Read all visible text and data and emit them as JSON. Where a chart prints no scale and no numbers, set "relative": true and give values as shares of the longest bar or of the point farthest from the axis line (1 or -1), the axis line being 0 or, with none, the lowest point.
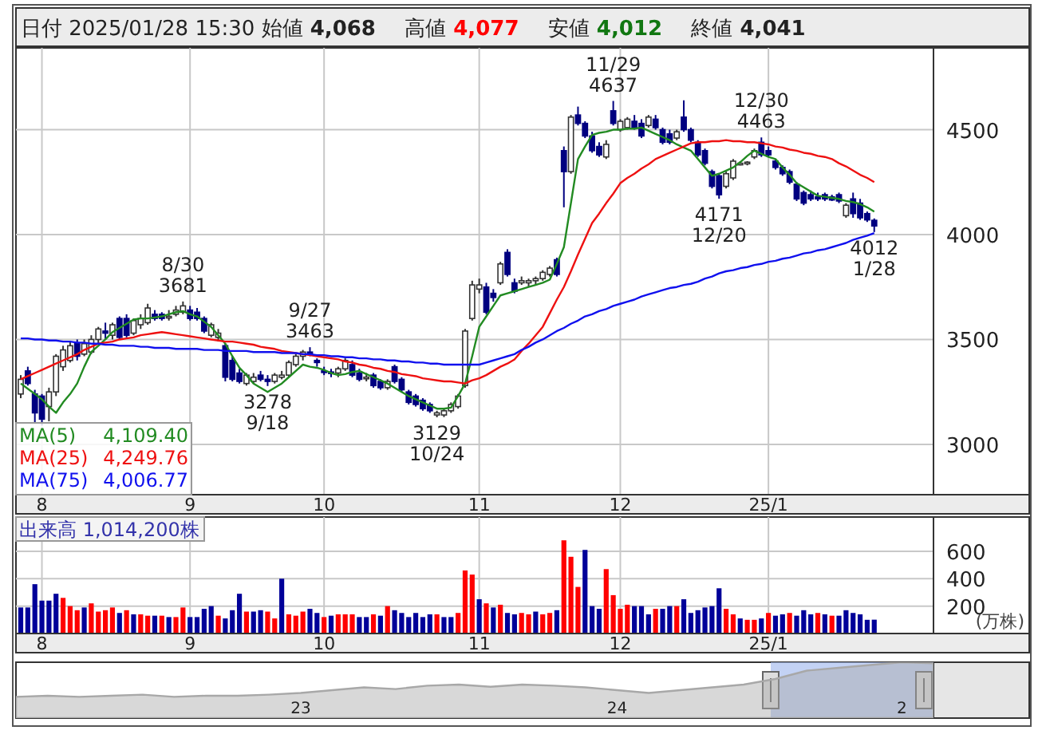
{
  "chart_data": [
    {
      "type": "candlestick",
      "title": "日付 2025/01/28 15:30 始値 4,068 高値 4,077 安値 4,012 終値 4,041",
      "colors": [
        "#ffffff",
        "#000080",
        "#000080",
        "#000080",
        "#ffffff",
        "#ffffff",
        "#ffffff",
        "#ffffff",
        "#000080",
        "#ffffff",
        "#ffffff",
        "#ffffff",
        "#000080",
        "#ffffff",
        "#000080",
        "#000080",
        "#ffffff",
        "#ffffff",
        "#ffffff",
        "#000080",
        "#000080",
        "#ffffff",
        "#ffffff",
        "#ffffff",
        "#000080",
        "#000080",
        "#000080",
        "#ffffff",
        "#ffffff",
        "#000080",
        "#000080",
        "#000080",
        "#ffffff",
        "#ffffff",
        "#000080",
        "#000080",
        "#ffffff",
        "#ffffff",
        "#ffffff",
        "#ffffff",
        "#ffffff",
        "#000080",
        "#000080",
        "#000080",
        "#000080",
        "#ffffff",
        "#ffffff",
        "#000080",
        "#000080",
        "#ffffff",
        "#000080",
        "#000080",
        "#ffffff",
        "#000080",
        "#000080",
        "#000080",
        "#000080",
        "#000080",
        "#000080",
        "#ffffff",
        "#ffffff",
        "#ffffff",
        "#ffffff",
        "#ffffff",
        "#ffffff",
        "#ffffff",
        "#000080",
        "#000080",
        "#ffffff",
        "#000080",
        "#000080",
        "#ffffff",
        "#ffffff",
        "#ffffff",
        "#ffffff",
        "#ffffff",
        "#000080",
        "#000080",
        "#ffffff",
        "#000080",
        "#000080",
        "#000080",
        "#000080",
        "#ffffff",
        "#000080",
        "#ffffff",
        "#ffffff",
        "#000080",
        "#000080",
        "#ffffff",
        "#000080",
        "#000080",
        "#000080",
        "#ffffff",
        "#000080",
        "#000080",
        "#000080",
        "#000080",
        "#000080",
        "#000080",
        "#ffffff",
        "#ffffff",
        "#ffffff",
        "#ffffff",
        "#ffffff",
        "#000080",
        "#000080",
        "#000080",
        "#000080",
        "#000080",
        "#000080",
        "#000080",
        "#000080",
        "#000080",
        "#000080",
        "#000080",
        "#000080",
        "#ffffff",
        "#000080",
        "#000080",
        "#000080",
        "#000080"
      ],
      "categories": [
        null,
        null,
        null,
        "8",
        null,
        null,
        null,
        null,
        null,
        null,
        null,
        null,
        null,
        null,
        null,
        null,
        null,
        null,
        null,
        null,
        null,
        null,
        null,
        null,
        "9",
        null,
        null,
        null,
        null,
        null,
        null,
        null,
        null,
        null,
        null,
        null,
        null,
        null,
        null,
        null,
        null,
        null,
        null,
        "10",
        null,
        null,
        null,
        null,
        null,
        null,
        null,
        null,
        null,
        null,
        null,
        null,
        null,
        null,
        null,
        null,
        null,
        null,
        null,
        null,
        null,
        "11",
        null,
        null,
        null,
        null,
        null,
        null,
        null,
        null,
        null,
        null,
        null,
        null,
        null,
        null,
        null,
        null,
        null,
        null,
        null,
        "12",
        null,
        null,
        null,
        null,
        null,
        null,
        null,
        null,
        null,
        null,
        null,
        null,
        null,
        null,
        null,
        null,
        null,
        null,
        null,
        null,
        "25/1",
        null,
        null,
        null,
        null,
        null,
        null,
        null,
        null,
        null,
        null,
        null,
        null,
        null,
        null,
        null
      ],
      "ohlc": [
        [
          3240,
          3330,
          3220,
          3310
        ],
        [
          3350,
          3370,
          3280,
          3290
        ],
        [
          3240,
          3260,
          3100,
          3150
        ],
        [
          3230,
          3240,
          3090,
          3120
        ],
        [
          3180,
          3270,
          3110,
          3250
        ],
        [
          3250,
          3430,
          3230,
          3420
        ],
        [
          3370,
          3470,
          3350,
          3450
        ],
        [
          3400,
          3490,
          3390,
          3470
        ],
        [
          3480,
          3500,
          3400,
          3420
        ],
        [
          3430,
          3500,
          3420,
          3480
        ],
        [
          3440,
          3520,
          3430,
          3500
        ],
        [
          3500,
          3560,
          3480,
          3550
        ],
        [
          3540,
          3580,
          3500,
          3530
        ],
        [
          3520,
          3580,
          3500,
          3570
        ],
        [
          3600,
          3610,
          3500,
          3510
        ],
        [
          3600,
          3620,
          3510,
          3520
        ],
        [
          3530,
          3600,
          3520,
          3590
        ],
        [
          3570,
          3620,
          3550,
          3600
        ],
        [
          3580,
          3670,
          3570,
          3650
        ],
        [
          3620,
          3640,
          3590,
          3600
        ],
        [
          3620,
          3630,
          3590,
          3600
        ],
        [
          3610,
          3640,
          3590,
          3610
        ],
        [
          3620,
          3660,
          3610,
          3640
        ],
        [
          3630,
          3681,
          3620,
          3660
        ],
        [
          3640,
          3660,
          3590,
          3600
        ],
        [
          3630,
          3650,
          3590,
          3600
        ],
        [
          3600,
          3610,
          3530,
          3540
        ],
        [
          3520,
          3580,
          3510,
          3570
        ],
        [
          3510,
          3550,
          3490,
          3530
        ],
        [
          3470,
          3480,
          3300,
          3320
        ],
        [
          3400,
          3420,
          3300,
          3310
        ],
        [
          3340,
          3360,
          3290,
          3300
        ],
        [
          3290,
          3340,
          3280,
          3330
        ],
        [
          3300,
          3340,
          3290,
          3320
        ],
        [
          3330,
          3350,
          3300,
          3310
        ],
        [
          3310,
          3330,
          3278,
          3300
        ],
        [
          3300,
          3340,
          3290,
          3330
        ],
        [
          3320,
          3350,
          3310,
          3330
        ],
        [
          3330,
          3400,
          3320,
          3390
        ],
        [
          3380,
          3430,
          3370,
          3420
        ],
        [
          3420,
          3450,
          3400,
          3440
        ],
        [
          3440,
          3463,
          3420,
          3430
        ],
        [
          3400,
          3410,
          3370,
          3390
        ],
        [
          3350,
          3370,
          3330,
          3345
        ],
        [
          3345,
          3360,
          3320,
          3340
        ],
        [
          3340,
          3370,
          3320,
          3360
        ],
        [
          3360,
          3410,
          3350,
          3400
        ],
        [
          3380,
          3400,
          3320,
          3330
        ],
        [
          3340,
          3360,
          3300,
          3310
        ],
        [
          3320,
          3340,
          3300,
          3320
        ],
        [
          3330,
          3340,
          3270,
          3280
        ],
        [
          3300,
          3310,
          3260,
          3270
        ],
        [
          3270,
          3310,
          3260,
          3300
        ],
        [
          3370,
          3380,
          3290,
          3300
        ],
        [
          3310,
          3320,
          3250,
          3260
        ],
        [
          3250,
          3260,
          3190,
          3200
        ],
        [
          3230,
          3240,
          3180,
          3190
        ],
        [
          3210,
          3220,
          3160,
          3170
        ],
        [
          3190,
          3200,
          3150,
          3160
        ],
        [
          3140,
          3160,
          3129,
          3150
        ],
        [
          3140,
          3170,
          3130,
          3160
        ],
        [
          3160,
          3200,
          3150,
          3190
        ],
        [
          3180,
          3240,
          3170,
          3230
        ],
        [
          3280,
          3550,
          3270,
          3540
        ],
        [
          3600,
          3780,
          3590,
          3760
        ],
        [
          3740,
          3790,
          3720,
          3760
        ],
        [
          3750,
          3770,
          3620,
          3630
        ],
        [
          3720,
          3740,
          3680,
          3700
        ],
        [
          3770,
          3870,
          3760,
          3860
        ],
        [
          3915,
          3930,
          3800,
          3810
        ],
        [
          3770,
          3790,
          3720,
          3730
        ],
        [
          3770,
          3800,
          3760,
          3780
        ],
        [
          3770,
          3790,
          3750,
          3780
        ],
        [
          3780,
          3800,
          3760,
          3790
        ],
        [
          3790,
          3830,
          3780,
          3820
        ],
        [
          3810,
          3850,
          3800,
          3840
        ],
        [
          3880,
          3890,
          3800,
          3810
        ],
        [
          4400,
          4420,
          4130,
          4300
        ],
        [
          4300,
          4570,
          4290,
          4560
        ],
        [
          4570,
          4610,
          4520,
          4530
        ],
        [
          4530,
          4540,
          4460,
          4470
        ],
        [
          4470,
          4490,
          4390,
          4400
        ],
        [
          4420,
          4440,
          4370,
          4380
        ],
        [
          4370,
          4450,
          4360,
          4430
        ],
        [
          4590,
          4637,
          4520,
          4530
        ],
        [
          4500,
          4550,
          4490,
          4540
        ],
        [
          4510,
          4560,
          4500,
          4550
        ],
        [
          4540,
          4570,
          4500,
          4510
        ],
        [
          4530,
          4550,
          4460,
          4470
        ],
        [
          4520,
          4570,
          4510,
          4560
        ],
        [
          4550,
          4570,
          4500,
          4510
        ],
        [
          4500,
          4510,
          4430,
          4440
        ],
        [
          4480,
          4500,
          4430,
          4440
        ],
        [
          4460,
          4500,
          4450,
          4490
        ],
        [
          4560,
          4640,
          4490,
          4500
        ],
        [
          4500,
          4510,
          4440,
          4450
        ],
        [
          4440,
          4450,
          4370,
          4380
        ],
        [
          4400,
          4410,
          4330,
          4340
        ],
        [
          4300,
          4310,
          4220,
          4230
        ],
        [
          4280,
          4290,
          4171,
          4190
        ],
        [
          4230,
          4300,
          4220,
          4290
        ],
        [
          4270,
          4360,
          4260,
          4350
        ],
        [
          4340,
          4350,
          4330,
          4340
        ],
        [
          4340,
          4350,
          4330,
          4345
        ],
        [
          4370,
          4410,
          4360,
          4400
        ],
        [
          4440,
          4463,
          4370,
          4380
        ],
        [
          4400,
          4420,
          4370,
          4380
        ],
        [
          4350,
          4360,
          4310,
          4320
        ],
        [
          4320,
          4330,
          4280,
          4290
        ],
        [
          4300,
          4310,
          4240,
          4250
        ],
        [
          4240,
          4250,
          4160,
          4170
        ],
        [
          4200,
          4210,
          4140,
          4150
        ],
        [
          4190,
          4210,
          4160,
          4170
        ],
        [
          4180,
          4200,
          4160,
          4170
        ],
        [
          4190,
          4200,
          4160,
          4170
        ],
        [
          4180,
          4190,
          4160,
          4165
        ],
        [
          4190,
          4200,
          4150,
          4160
        ],
        [
          4090,
          4150,
          4080,
          4140
        ],
        [
          4170,
          4200,
          4080,
          4100
        ],
        [
          4150,
          4170,
          4070,
          4080
        ],
        [
          4100,
          4110,
          4060,
          4070
        ],
        [
          4068,
          4077,
          4012,
          4041
        ]
      ],
      "series": [
        {
          "type": "line",
          "name": "MA(5)",
          "color": "#228b22",
          "values": [
            3290,
            3265,
            3240,
            3215,
            3180,
            3150,
            3200,
            3240,
            3290,
            3370,
            3440,
            3470,
            3500,
            3535,
            3555,
            3575,
            3595,
            3600,
            3600,
            3605,
            3610,
            3620,
            3630,
            3635,
            3620,
            3610,
            3585,
            3560,
            3520,
            3480,
            3420,
            3365,
            3330,
            3290,
            3270,
            3250,
            3270,
            3290,
            3320,
            3350,
            3380,
            3370,
            3365,
            3355,
            3340,
            3330,
            3335,
            3345,
            3350,
            3335,
            3320,
            3305,
            3290,
            3270,
            3250,
            3230,
            3215,
            3200,
            3185,
            3170,
            3170,
            3175,
            3230,
            3290,
            3420,
            3560,
            3610,
            3660,
            3710,
            3720,
            3730,
            3740,
            3750,
            3760,
            3770,
            3785,
            3860,
            3940,
            4150,
            4360,
            4420,
            4475,
            4485,
            4490,
            4500,
            4500,
            4505,
            4505,
            4510,
            4495,
            4480,
            4465,
            4450,
            4430,
            4415,
            4400,
            4360,
            4320,
            4280,
            4290,
            4305,
            4320,
            4345,
            4375,
            4400,
            4385,
            4370,
            4360,
            4320,
            4285,
            4245,
            4225,
            4205,
            4185,
            4180,
            4175,
            4170,
            4160,
            4155,
            4145,
            4130,
            4109.4
          ]
        },
        {
          "type": "line",
          "name": "MA(25)",
          "color": "#ee1111",
          "values": [
            3310,
            3325,
            3340,
            3355,
            3370,
            3385,
            3400,
            3415,
            3430,
            3450,
            3465,
            3480,
            3485,
            3490,
            3500,
            3505,
            3510,
            3520,
            3525,
            3530,
            3535,
            3530,
            3525,
            3520,
            3515,
            3510,
            3505,
            3500,
            3495,
            3490,
            3490,
            3485,
            3480,
            3475,
            3465,
            3460,
            3455,
            3445,
            3440,
            3435,
            3430,
            3425,
            3420,
            3415,
            3410,
            3405,
            3395,
            3390,
            3380,
            3375,
            3365,
            3360,
            3350,
            3345,
            3335,
            3330,
            3325,
            3315,
            3310,
            3305,
            3300,
            3300,
            3295,
            3290,
            3305,
            3315,
            3330,
            3350,
            3370,
            3385,
            3405,
            3445,
            3480,
            3520,
            3560,
            3625,
            3690,
            3750,
            3825,
            3905,
            3980,
            4055,
            4100,
            4150,
            4195,
            4245,
            4270,
            4290,
            4315,
            4335,
            4360,
            4375,
            4390,
            4405,
            4420,
            4435,
            4440,
            4440,
            4445,
            4445,
            4450,
            4445,
            4445,
            4440,
            4440,
            4435,
            4430,
            4420,
            4415,
            4405,
            4400,
            4390,
            4385,
            4375,
            4370,
            4360,
            4340,
            4325,
            4305,
            4285,
            4270,
            4249.76
          ]
        },
        {
          "type": "line",
          "name": "MA(75)",
          "color": "#1010ee",
          "values": [
            3505,
            3505,
            3500,
            3500,
            3495,
            3495,
            3490,
            3490,
            3485,
            3485,
            3480,
            3480,
            3475,
            3475,
            3470,
            3470,
            3470,
            3465,
            3465,
            3460,
            3460,
            3460,
            3455,
            3455,
            3455,
            3455,
            3450,
            3450,
            3450,
            3445,
            3445,
            3445,
            3445,
            3440,
            3440,
            3440,
            3440,
            3435,
            3435,
            3435,
            3430,
            3430,
            3425,
            3425,
            3420,
            3420,
            3415,
            3415,
            3410,
            3410,
            3405,
            3405,
            3400,
            3400,
            3395,
            3395,
            3390,
            3390,
            3385,
            3385,
            3380,
            3380,
            3380,
            3380,
            3380,
            3380,
            3390,
            3400,
            3410,
            3420,
            3430,
            3450,
            3465,
            3485,
            3500,
            3520,
            3540,
            3555,
            3575,
            3590,
            3610,
            3620,
            3635,
            3645,
            3660,
            3670,
            3680,
            3690,
            3705,
            3715,
            3725,
            3735,
            3745,
            3750,
            3760,
            3765,
            3775,
            3790,
            3800,
            3815,
            3825,
            3830,
            3840,
            3845,
            3855,
            3860,
            3870,
            3875,
            3885,
            3890,
            3900,
            3910,
            3915,
            3925,
            3930,
            3940,
            3950,
            3960,
            3975,
            3985,
            3995,
            4006.77
          ]
        }
      ],
      "ylim": [
        2760,
        4890
      ],
      "yticks": [
        3000,
        3500,
        4000,
        4500
      ],
      "grid": true,
      "legend": "bottom left",
      "annotations": [
        {
          "text": "8/30\n3681",
          "y": 3681
        },
        {
          "text": "3278\n9/18",
          "y": 3278
        },
        {
          "text": "9/27\n3463",
          "y": 3463
        },
        {
          "text": "3129\n10/24",
          "y": 3129
        },
        {
          "text": "11/29\n4637",
          "y": 4637
        },
        {
          "text": "4171\n12/20",
          "y": 4171
        },
        {
          "text": "12/30\n4463",
          "y": 4463
        },
        {
          "text": "4012\n1/28",
          "y": 4012
        },
        "4,109.40",
        "4,249.76",
        "4,006.77"
      ]
    },
    {
      "type": "bar",
      "title": "出来高 1,014,200株",
      "ylabel": "(万株)",
      "categories": [
        null,
        null,
        null,
        "8",
        null,
        null,
        null,
        null,
        null,
        null,
        null,
        null,
        null,
        null,
        null,
        null,
        null,
        null,
        null,
        null,
        null,
        null,
        null,
        null,
        "9",
        null,
        null,
        null,
        null,
        null,
        null,
        null,
        null,
        null,
        null,
        null,
        null,
        null,
        null,
        null,
        null,
        null,
        null,
        "10",
        null,
        null,
        null,
        null,
        null,
        null,
        null,
        null,
        null,
        null,
        null,
        null,
        null,
        null,
        null,
        null,
        null,
        null,
        null,
        null,
        null,
        "11",
        null,
        null,
        null,
        null,
        null,
        null,
        null,
        null,
        null,
        null,
        null,
        null,
        null,
        null,
        null,
        null,
        null,
        null,
        null,
        "12",
        null,
        null,
        null,
        null,
        null,
        null,
        null,
        null,
        null,
        null,
        null,
        null,
        null,
        null,
        null,
        null,
        null,
        null,
        null,
        null,
        "25/1",
        null,
        null,
        null,
        null,
        null,
        null,
        null,
        null,
        null,
        null,
        null,
        null,
        null,
        null,
        null
      ],
      "values": [
        190,
        190,
        360,
        240,
        240,
        290,
        260,
        200,
        170,
        190,
        220,
        160,
        170,
        190,
        150,
        170,
        140,
        140,
        130,
        130,
        130,
        120,
        120,
        190,
        120,
        120,
        180,
        200,
        130,
        110,
        170,
        290,
        160,
        160,
        170,
        160,
        110,
        400,
        140,
        130,
        160,
        180,
        150,
        120,
        130,
        140,
        140,
        140,
        120,
        120,
        140,
        130,
        200,
        170,
        150,
        120,
        150,
        120,
        140,
        140,
        120,
        120,
        150,
        460,
        430,
        250,
        220,
        190,
        210,
        150,
        140,
        150,
        140,
        160,
        140,
        150,
        170,
        680,
        560,
        340,
        610,
        200,
        180,
        470,
        280,
        180,
        210,
        200,
        200,
        140,
        180,
        180,
        200,
        200,
        250,
        150,
        170,
        190,
        200,
        330,
        180,
        140,
        110,
        100,
        100,
        110,
        150,
        130,
        140,
        150,
        130,
        170,
        140,
        150,
        140,
        130,
        130,
        170,
        150,
        140,
        100,
        101
      ],
      "colors": [
        "#000099",
        "#000099",
        "#000099",
        "#000099",
        "#000099",
        "#000099",
        "#ff0000",
        "#ff0000",
        "#ff0000",
        "#000099",
        "#ff0000",
        "#ff0000",
        "#ff0000",
        "#ff0000",
        "#000099",
        "#ff0000",
        "#000099",
        "#ff0000",
        "#ff0000",
        "#000099",
        "#ff0000",
        "#000099",
        "#ff0000",
        "#ff0000",
        "#000099",
        "#000099",
        "#000099",
        "#000099",
        "#ff0000",
        "#000099",
        "#000099",
        "#000099",
        "#ff0000",
        "#000099",
        "#000099",
        "#ff0000",
        "#ff0000",
        "#000099",
        "#ff0000",
        "#ff0000",
        "#ff0000",
        "#000099",
        "#000099",
        "#ff0000",
        "#000099",
        "#ff0000",
        "#ff0000",
        "#ff0000",
        "#000099",
        "#000099",
        "#ff0000",
        "#000099",
        "#ff0000",
        "#000099",
        "#000099",
        "#000099",
        "#000099",
        "#000099",
        "#000099",
        "#ff0000",
        "#000099",
        "#000099",
        "#ff0000",
        "#ff0000",
        "#ff0000",
        "#000099",
        "#ff0000",
        "#000099",
        "#ff0000",
        "#000099",
        "#000099",
        "#ff0000",
        "#ff0000",
        "#000099",
        "#ff0000",
        "#ff0000",
        "#000099",
        "#ff0000",
        "#ff0000",
        "#ff0000",
        "#000099",
        "#000099",
        "#000099",
        "#ff0000",
        "#ff0000",
        "#ff0000",
        "#ff0000",
        "#000099",
        "#000099",
        "#000099",
        "#ff0000",
        "#000099",
        "#000099",
        "#ff0000",
        "#000099",
        "#000099",
        "#000099",
        "#000099",
        "#000099",
        "#000099",
        "#ff0000",
        "#ff0000",
        "#000099",
        "#ff0000",
        "#ff0000",
        "#000099",
        "#ff0000",
        "#000099",
        "#000099",
        "#ff0000",
        "#000099",
        "#000099",
        "#000099",
        "#ff0000",
        "#000099",
        "#ff0000",
        "#000099",
        "#000099",
        "#000099",
        "#000099",
        "#000099",
        "#000099"
      ],
      "ylim": [
        0,
        850
      ],
      "yticks": [
        200,
        400,
        600
      ],
      "grid": true
    },
    {
      "type": "area",
      "relative": true,
      "color": "#a8a8a8",
      "categories": [
        null,
        null,
        null,
        null,
        null,
        null,
        null,
        null,
        null,
        "23",
        null,
        null,
        null,
        null,
        null,
        null,
        null,
        null,
        null,
        "24",
        null,
        null,
        null,
        null,
        null,
        null,
        null,
        null,
        "2",
        null
      ],
      "values": [
        0.38,
        0.4,
        0.38,
        0.4,
        0.42,
        0.38,
        0.4,
        0.4,
        0.42,
        0.45,
        0.5,
        0.55,
        0.52,
        0.58,
        0.6,
        0.56,
        0.6,
        0.58,
        0.55,
        0.5,
        0.45,
        0.5,
        0.55,
        0.6,
        0.7,
        0.85,
        0.9,
        0.95,
        1.0,
        0.98
      ]
    }
  ]
}
